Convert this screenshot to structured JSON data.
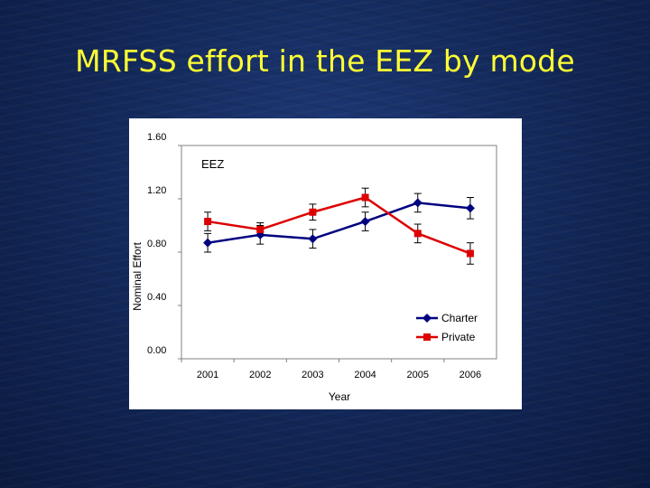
{
  "slide": {
    "title": "MRFSS effort in the EEZ by mode"
  },
  "colors": {
    "title": "#ffff33",
    "charter": "#000080",
    "private": "#dd0000"
  },
  "chart_data": {
    "type": "line",
    "title": "",
    "annotation": "EEZ",
    "xlabel": "Year",
    "ylabel": "Nominal Effort",
    "x": [
      "2001",
      "2002",
      "2003",
      "2004",
      "2005",
      "2006"
    ],
    "ylim": [
      0,
      1.6
    ],
    "yticks": [
      "0.00",
      "0.40",
      "0.80",
      "1.20",
      "1.60"
    ],
    "yticks_values": [
      0,
      0.4,
      0.8,
      1.2,
      1.6
    ],
    "grid": false,
    "legend_position": "bottom-right",
    "series": [
      {
        "name": "Charter",
        "marker": "diamond",
        "color": "#000080",
        "values": [
          0.87,
          0.93,
          0.9,
          1.03,
          1.17,
          1.13
        ],
        "error": [
          0.07,
          0.07,
          0.07,
          0.07,
          0.07,
          0.08
        ]
      },
      {
        "name": "Private",
        "marker": "square",
        "color": "#dd0000",
        "values": [
          1.03,
          0.97,
          1.1,
          1.21,
          0.94,
          0.79
        ],
        "error": [
          0.07,
          0.05,
          0.06,
          0.07,
          0.07,
          0.08
        ]
      }
    ]
  }
}
